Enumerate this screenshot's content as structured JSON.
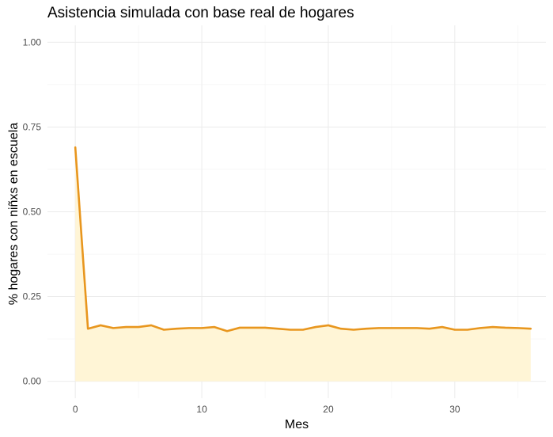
{
  "chart_data": {
    "type": "area",
    "title": "Asistencia simulada con base real de hogares",
    "xlabel": "Mes",
    "ylabel": "% hogares con niñxs en escuela",
    "xlim": [
      -2.2,
      37.2
    ],
    "ylim": [
      -0.05,
      1.05
    ],
    "x_ticks": [
      0,
      10,
      20,
      30
    ],
    "x_tick_labels": [
      "0",
      "10",
      "20",
      "30"
    ],
    "y_ticks": [
      0,
      0.25,
      0.5,
      0.75,
      1.0
    ],
    "y_tick_labels": [
      "0.00",
      "0.25",
      "0.50",
      "0.75",
      "1.00"
    ],
    "grid": true,
    "line_color": "#E8961E",
    "fill_color": "#FFF5D6",
    "series": [
      {
        "x": [
          0,
          1,
          2,
          3,
          4,
          5,
          6,
          7,
          8,
          9,
          10,
          11,
          12,
          13,
          14,
          15,
          16,
          17,
          18,
          19,
          20,
          21,
          22,
          23,
          24,
          25,
          26,
          27,
          28,
          29,
          30,
          31,
          32,
          33,
          34,
          35,
          36
        ],
        "values": [
          0.69,
          0.155,
          0.165,
          0.157,
          0.16,
          0.16,
          0.165,
          0.152,
          0.155,
          0.157,
          0.157,
          0.16,
          0.148,
          0.158,
          0.158,
          0.158,
          0.155,
          0.152,
          0.152,
          0.16,
          0.165,
          0.155,
          0.152,
          0.155,
          0.157,
          0.157,
          0.157,
          0.157,
          0.155,
          0.16,
          0.152,
          0.152,
          0.157,
          0.16,
          0.158,
          0.157,
          0.155
        ]
      }
    ]
  }
}
